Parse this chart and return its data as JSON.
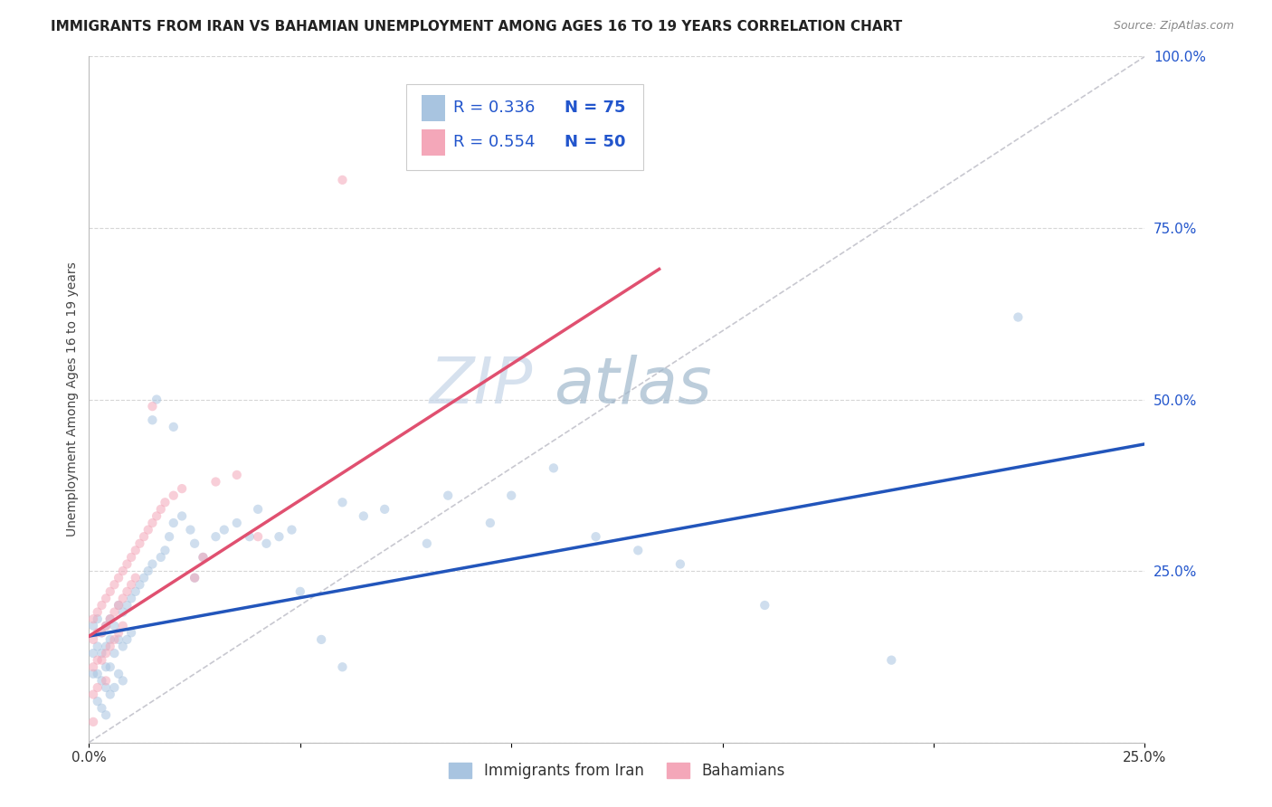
{
  "title": "IMMIGRANTS FROM IRAN VS BAHAMIAN UNEMPLOYMENT AMONG AGES 16 TO 19 YEARS CORRELATION CHART",
  "source": "Source: ZipAtlas.com",
  "ylabel": "Unemployment Among Ages 16 to 19 years",
  "xlim": [
    0.0,
    0.25
  ],
  "ylim": [
    0.0,
    1.0
  ],
  "xticks": [
    0.0,
    0.05,
    0.1,
    0.15,
    0.2,
    0.25
  ],
  "xticklabels": [
    "0.0%",
    "",
    "",
    "",
    "",
    "25.0%"
  ],
  "yticks": [
    0.0,
    0.25,
    0.5,
    0.75,
    1.0
  ],
  "yticklabels": [
    "",
    "25.0%",
    "50.0%",
    "75.0%",
    "100.0%"
  ],
  "blue_color": "#a8c4e0",
  "pink_color": "#f4a7b9",
  "blue_line_color": "#2255bb",
  "pink_line_color": "#e05070",
  "diagonal_color": "#c8c8d0",
  "legend_label1": "Immigrants from Iran",
  "legend_label2": "Bahamians",
  "watermark": "ZIPatlas",
  "blue_scatter_x": [
    0.001,
    0.001,
    0.001,
    0.002,
    0.002,
    0.002,
    0.002,
    0.003,
    0.003,
    0.003,
    0.003,
    0.004,
    0.004,
    0.004,
    0.004,
    0.004,
    0.005,
    0.005,
    0.005,
    0.005,
    0.006,
    0.006,
    0.006,
    0.007,
    0.007,
    0.007,
    0.008,
    0.008,
    0.008,
    0.009,
    0.009,
    0.01,
    0.01,
    0.011,
    0.012,
    0.013,
    0.014,
    0.015,
    0.015,
    0.016,
    0.017,
    0.018,
    0.019,
    0.02,
    0.02,
    0.022,
    0.024,
    0.025,
    0.025,
    0.027,
    0.03,
    0.032,
    0.035,
    0.038,
    0.04,
    0.042,
    0.045,
    0.048,
    0.05,
    0.055,
    0.06,
    0.06,
    0.065,
    0.07,
    0.08,
    0.085,
    0.095,
    0.1,
    0.11,
    0.12,
    0.13,
    0.14,
    0.16,
    0.19,
    0.22
  ],
  "blue_scatter_y": [
    0.17,
    0.13,
    0.1,
    0.18,
    0.14,
    0.1,
    0.06,
    0.16,
    0.13,
    0.09,
    0.05,
    0.17,
    0.14,
    0.11,
    0.08,
    0.04,
    0.18,
    0.15,
    0.11,
    0.07,
    0.17,
    0.13,
    0.08,
    0.2,
    0.15,
    0.1,
    0.19,
    0.14,
    0.09,
    0.2,
    0.15,
    0.21,
    0.16,
    0.22,
    0.23,
    0.24,
    0.25,
    0.47,
    0.26,
    0.5,
    0.27,
    0.28,
    0.3,
    0.46,
    0.32,
    0.33,
    0.31,
    0.29,
    0.24,
    0.27,
    0.3,
    0.31,
    0.32,
    0.3,
    0.34,
    0.29,
    0.3,
    0.31,
    0.22,
    0.15,
    0.35,
    0.11,
    0.33,
    0.34,
    0.29,
    0.36,
    0.32,
    0.36,
    0.4,
    0.3,
    0.28,
    0.26,
    0.2,
    0.12,
    0.62
  ],
  "pink_scatter_x": [
    0.001,
    0.001,
    0.001,
    0.001,
    0.001,
    0.002,
    0.002,
    0.002,
    0.002,
    0.003,
    0.003,
    0.003,
    0.004,
    0.004,
    0.004,
    0.004,
    0.005,
    0.005,
    0.005,
    0.006,
    0.006,
    0.006,
    0.007,
    0.007,
    0.007,
    0.008,
    0.008,
    0.008,
    0.009,
    0.009,
    0.01,
    0.01,
    0.011,
    0.011,
    0.012,
    0.013,
    0.014,
    0.015,
    0.015,
    0.016,
    0.017,
    0.018,
    0.02,
    0.022,
    0.025,
    0.027,
    0.03,
    0.035,
    0.04,
    0.06
  ],
  "pink_scatter_y": [
    0.18,
    0.15,
    0.11,
    0.07,
    0.03,
    0.19,
    0.16,
    0.12,
    0.08,
    0.2,
    0.16,
    0.12,
    0.21,
    0.17,
    0.13,
    0.09,
    0.22,
    0.18,
    0.14,
    0.23,
    0.19,
    0.15,
    0.24,
    0.2,
    0.16,
    0.25,
    0.21,
    0.17,
    0.26,
    0.22,
    0.27,
    0.23,
    0.28,
    0.24,
    0.29,
    0.3,
    0.31,
    0.49,
    0.32,
    0.33,
    0.34,
    0.35,
    0.36,
    0.37,
    0.24,
    0.27,
    0.38,
    0.39,
    0.3,
    0.82
  ],
  "blue_line_x": [
    0.0,
    0.25
  ],
  "blue_line_y": [
    0.155,
    0.435
  ],
  "pink_line_x": [
    0.0,
    0.135
  ],
  "pink_line_y": [
    0.155,
    0.69
  ],
  "diag_line_x": [
    0.0,
    0.25
  ],
  "diag_line_y": [
    0.0,
    1.0
  ],
  "title_fontsize": 11,
  "source_fontsize": 9,
  "axis_label_fontsize": 10,
  "tick_fontsize": 11,
  "marker_size": 55,
  "marker_alpha": 0.55,
  "background_color": "#ffffff",
  "grid_color": "#cccccc"
}
